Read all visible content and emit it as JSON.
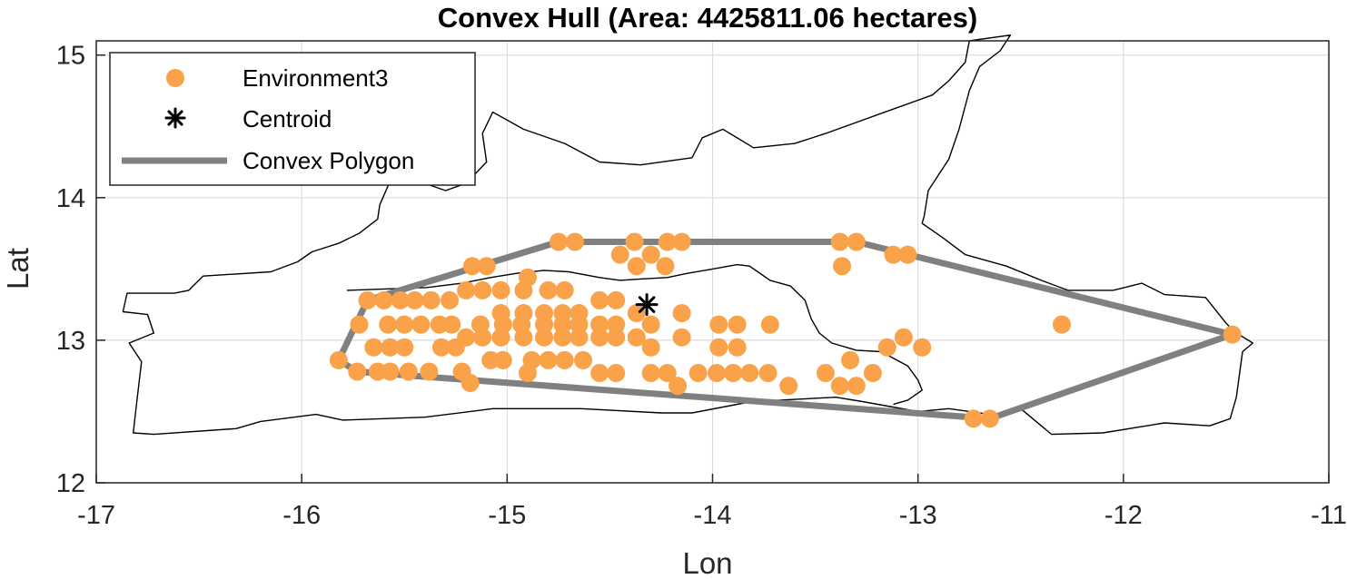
{
  "chart_data": {
    "type": "scatter",
    "title": "Convex Hull (Area: 4425811.06 hectares)",
    "xlabel": "Lon",
    "ylabel": "Lat",
    "xlim": [
      -17,
      -11
    ],
    "ylim": [
      12,
      15.1
    ],
    "xticks": [
      -17,
      -16,
      -15,
      -14,
      -13,
      -12,
      -11
    ],
    "yticks": [
      12,
      13,
      14,
      15
    ],
    "grid": true,
    "legend": {
      "placement": "top-left",
      "entries": [
        "Environment3",
        "Centroid",
        "Convex Polygon"
      ]
    },
    "colors": {
      "points": "#F9A24A",
      "hull": "#808080",
      "centroid": "#000000",
      "boundary": "#000000"
    },
    "series": [
      {
        "name": "Environment3",
        "marker": "circle",
        "points": [
          [
            -14.75,
            13.69
          ],
          [
            -14.67,
            13.69
          ],
          [
            -14.38,
            13.69
          ],
          [
            -14.22,
            13.69
          ],
          [
            -14.15,
            13.69
          ],
          [
            -13.38,
            13.69
          ],
          [
            -13.3,
            13.69
          ],
          [
            -14.3,
            13.6
          ],
          [
            -14.45,
            13.6
          ],
          [
            -13.12,
            13.6
          ],
          [
            -13.05,
            13.6
          ],
          [
            -15.17,
            13.52
          ],
          [
            -15.1,
            13.52
          ],
          [
            -14.37,
            13.52
          ],
          [
            -14.23,
            13.52
          ],
          [
            -13.37,
            13.52
          ],
          [
            -14.9,
            13.44
          ],
          [
            -15.2,
            13.35
          ],
          [
            -15.12,
            13.35
          ],
          [
            -15.03,
            13.35
          ],
          [
            -14.92,
            13.35
          ],
          [
            -14.8,
            13.35
          ],
          [
            -14.72,
            13.35
          ],
          [
            -15.68,
            13.28
          ],
          [
            -15.6,
            13.28
          ],
          [
            -15.52,
            13.28
          ],
          [
            -15.45,
            13.28
          ],
          [
            -15.37,
            13.28
          ],
          [
            -15.28,
            13.28
          ],
          [
            -14.55,
            13.28
          ],
          [
            -14.47,
            13.28
          ],
          [
            -15.03,
            13.19
          ],
          [
            -14.92,
            13.19
          ],
          [
            -14.82,
            13.19
          ],
          [
            -14.73,
            13.19
          ],
          [
            -14.65,
            13.19
          ],
          [
            -14.37,
            13.19
          ],
          [
            -14.15,
            13.19
          ],
          [
            -15.72,
            13.11
          ],
          [
            -15.58,
            13.11
          ],
          [
            -15.5,
            13.11
          ],
          [
            -15.42,
            13.11
          ],
          [
            -15.33,
            13.11
          ],
          [
            -15.27,
            13.11
          ],
          [
            -15.13,
            13.11
          ],
          [
            -15.02,
            13.11
          ],
          [
            -14.93,
            13.11
          ],
          [
            -14.82,
            13.11
          ],
          [
            -14.73,
            13.11
          ],
          [
            -14.65,
            13.11
          ],
          [
            -14.55,
            13.11
          ],
          [
            -14.47,
            13.11
          ],
          [
            -14.3,
            13.11
          ],
          [
            -13.97,
            13.11
          ],
          [
            -13.88,
            13.11
          ],
          [
            -13.72,
            13.11
          ],
          [
            -12.3,
            13.11
          ],
          [
            -15.2,
            13.02
          ],
          [
            -15.12,
            13.02
          ],
          [
            -15.03,
            13.02
          ],
          [
            -14.92,
            13.02
          ],
          [
            -14.82,
            13.02
          ],
          [
            -14.73,
            13.02
          ],
          [
            -14.65,
            13.02
          ],
          [
            -14.55,
            13.02
          ],
          [
            -14.47,
            13.02
          ],
          [
            -14.37,
            13.02
          ],
          [
            -14.15,
            13.02
          ],
          [
            -13.07,
            13.02
          ],
          [
            -15.65,
            12.95
          ],
          [
            -15.57,
            12.95
          ],
          [
            -15.5,
            12.95
          ],
          [
            -15.32,
            12.95
          ],
          [
            -15.25,
            12.95
          ],
          [
            -14.3,
            12.95
          ],
          [
            -13.97,
            12.95
          ],
          [
            -13.88,
            12.95
          ],
          [
            -13.15,
            12.95
          ],
          [
            -12.98,
            12.95
          ],
          [
            -15.82,
            12.86
          ],
          [
            -15.08,
            12.86
          ],
          [
            -15.02,
            12.86
          ],
          [
            -14.88,
            12.86
          ],
          [
            -14.8,
            12.86
          ],
          [
            -14.72,
            12.86
          ],
          [
            -14.63,
            12.86
          ],
          [
            -13.33,
            12.86
          ],
          [
            -15.73,
            12.78
          ],
          [
            -15.63,
            12.78
          ],
          [
            -15.57,
            12.78
          ],
          [
            -15.48,
            12.78
          ],
          [
            -15.38,
            12.78
          ],
          [
            -15.22,
            12.78
          ],
          [
            -14.9,
            12.77
          ],
          [
            -14.55,
            12.77
          ],
          [
            -14.47,
            12.77
          ],
          [
            -14.3,
            12.77
          ],
          [
            -14.22,
            12.77
          ],
          [
            -14.07,
            12.77
          ],
          [
            -13.98,
            12.77
          ],
          [
            -13.9,
            12.77
          ],
          [
            -13.82,
            12.77
          ],
          [
            -13.73,
            12.77
          ],
          [
            -13.45,
            12.77
          ],
          [
            -13.22,
            12.77
          ],
          [
            -15.18,
            12.7
          ],
          [
            -14.17,
            12.68
          ],
          [
            -13.63,
            12.68
          ],
          [
            -13.38,
            12.68
          ],
          [
            -13.3,
            12.68
          ],
          [
            -12.73,
            12.45
          ],
          [
            -12.65,
            12.45
          ],
          [
            -11.47,
            13.04
          ]
        ]
      },
      {
        "name": "Centroid",
        "marker": "asterisk",
        "points": [
          [
            -14.32,
            13.25
          ]
        ]
      },
      {
        "name": "Convex Polygon",
        "marker": "line",
        "points": [
          [
            -14.75,
            13.69
          ],
          [
            -13.3,
            13.69
          ],
          [
            -11.47,
            13.04
          ],
          [
            -12.65,
            12.45
          ],
          [
            -15.73,
            12.78
          ],
          [
            -15.82,
            12.86
          ],
          [
            -15.68,
            13.28
          ],
          [
            -14.75,
            13.69
          ]
        ]
      }
    ],
    "boundary_outline": [
      [
        -16.82,
        12.35
      ],
      [
        -16.72,
        12.34
      ],
      [
        -16.32,
        12.38
      ],
      [
        -16.2,
        12.43
      ],
      [
        -15.93,
        12.48
      ],
      [
        -15.8,
        12.44
      ],
      [
        -15.4,
        12.46
      ],
      [
        -15.07,
        12.52
      ],
      [
        -14.64,
        12.52
      ],
      [
        -14.25,
        12.49
      ],
      [
        -14.1,
        12.49
      ],
      [
        -13.81,
        12.57
      ],
      [
        -13.4,
        12.6
      ],
      [
        -13.27,
        12.57
      ],
      [
        -13.0,
        12.5
      ],
      [
        -12.85,
        12.52
      ],
      [
        -12.65,
        12.48
      ],
      [
        -12.62,
        12.46
      ],
      [
        -12.5,
        12.52
      ],
      [
        -12.35,
        12.34
      ],
      [
        -12.1,
        12.35
      ],
      [
        -11.8,
        12.42
      ],
      [
        -11.58,
        12.4
      ],
      [
        -11.48,
        12.45
      ],
      [
        -11.45,
        12.6
      ],
      [
        -11.42,
        12.92
      ],
      [
        -11.37,
        12.98
      ],
      [
        -11.46,
        13.06
      ],
      [
        -11.5,
        13.12
      ],
      [
        -11.6,
        13.3
      ],
      [
        -11.8,
        13.32
      ],
      [
        -11.91,
        13.4
      ],
      [
        -12.05,
        13.35
      ],
      [
        -12.27,
        13.35
      ],
      [
        -12.4,
        13.42
      ],
      [
        -12.57,
        13.52
      ],
      [
        -12.77,
        13.6
      ],
      [
        -12.88,
        13.72
      ],
      [
        -12.98,
        13.82
      ],
      [
        -12.97,
        13.87
      ],
      [
        -12.95,
        14.05
      ],
      [
        -12.85,
        14.27
      ],
      [
        -12.8,
        14.48
      ],
      [
        -12.75,
        14.75
      ],
      [
        -12.7,
        14.92
      ],
      [
        -12.6,
        15.03
      ],
      [
        -12.55,
        15.14
      ],
      [
        -12.75,
        15.1
      ],
      [
        -12.77,
        14.95
      ],
      [
        -12.85,
        14.82
      ],
      [
        -12.93,
        14.72
      ],
      [
        -13.2,
        14.58
      ],
      [
        -13.45,
        14.45
      ],
      [
        -13.6,
        14.38
      ],
      [
        -13.8,
        14.35
      ],
      [
        -13.95,
        14.48
      ],
      [
        -14.05,
        14.42
      ],
      [
        -14.1,
        14.28
      ],
      [
        -14.35,
        14.23
      ],
      [
        -14.55,
        14.25
      ],
      [
        -14.72,
        14.38
      ],
      [
        -14.92,
        14.48
      ],
      [
        -15.07,
        14.6
      ],
      [
        -15.12,
        14.45
      ],
      [
        -15.1,
        14.25
      ],
      [
        -15.2,
        14.1
      ],
      [
        -15.3,
        14.05
      ],
      [
        -15.4,
        14.1
      ],
      [
        -15.45,
        14.28
      ],
      [
        -15.55,
        14.18
      ],
      [
        -15.62,
        13.95
      ],
      [
        -15.63,
        13.85
      ],
      [
        -15.72,
        13.75
      ],
      [
        -15.82,
        13.68
      ],
      [
        -15.95,
        13.62
      ],
      [
        -16.02,
        13.55
      ],
      [
        -16.15,
        13.48
      ],
      [
        -16.48,
        13.45
      ],
      [
        -16.55,
        13.35
      ],
      [
        -16.62,
        13.33
      ],
      [
        -16.85,
        13.33
      ],
      [
        -16.87,
        13.2
      ],
      [
        -16.75,
        13.18
      ],
      [
        -16.72,
        13.05
      ],
      [
        -16.84,
        12.98
      ],
      [
        -16.78,
        12.85
      ],
      [
        -16.8,
        12.6
      ],
      [
        -16.82,
        12.35
      ]
    ],
    "boundary_inner": [
      [
        -15.78,
        13.35
      ],
      [
        -15.58,
        13.36
      ],
      [
        -15.39,
        13.37
      ],
      [
        -15.22,
        13.4
      ],
      [
        -15.08,
        13.44
      ],
      [
        -14.95,
        13.47
      ],
      [
        -14.82,
        13.49
      ],
      [
        -14.7,
        13.48
      ],
      [
        -14.55,
        13.44
      ],
      [
        -14.45,
        13.42
      ],
      [
        -14.35,
        13.43
      ],
      [
        -14.22,
        13.44
      ],
      [
        -14.12,
        13.47
      ],
      [
        -14.0,
        13.5
      ],
      [
        -13.88,
        13.53
      ],
      [
        -13.82,
        13.52
      ],
      [
        -13.78,
        13.48
      ],
      [
        -13.72,
        13.42
      ],
      [
        -13.62,
        13.38
      ],
      [
        -13.55,
        13.28
      ],
      [
        -13.52,
        13.15
      ],
      [
        -13.48,
        13.05
      ],
      [
        -13.42,
        12.98
      ],
      [
        -13.3,
        12.93
      ],
      [
        -13.18,
        12.92
      ],
      [
        -13.05,
        12.82
      ],
      [
        -13.0,
        12.72
      ],
      [
        -12.98,
        12.65
      ],
      [
        -13.05,
        12.58
      ],
      [
        -13.12,
        12.55
      ]
    ]
  }
}
